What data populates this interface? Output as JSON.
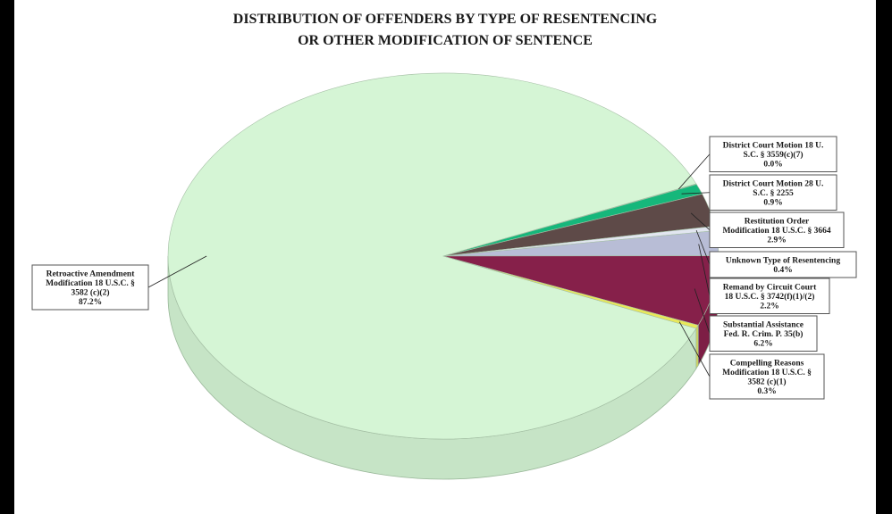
{
  "chart_data": {
    "type": "pie",
    "title": "DISTRIBUTION OF OFFENDERS BY TYPE OF RESENTENCING OR OTHER MODIFICATION OF SENTENCE",
    "title_lines": [
      "DISTRIBUTION OF OFFENDERS BY TYPE OF RESENTENCING",
      "OR OTHER MODIFICATION OF SENTENCE"
    ],
    "style": "3d",
    "slices": [
      {
        "label": "Retroactive Amendment Modification 18 U.S.C. § 3582 (c)(2)",
        "value_text": "87.2%",
        "value": 87.2,
        "color": "#d5f5d5",
        "label_lines": [
          "Retroactive Amendment",
          "Modification 18 U.S.C. §",
          "3582 (c)(2)",
          "87.2%"
        ]
      },
      {
        "label": "District Court Motion 18 U.S.C. § 3559(c)(7)",
        "value_text": "0.0%",
        "value": 0.05,
        "color": "#1f8a4c",
        "label_lines": [
          "District Court Motion 18 U.",
          "S.C. § 3559(c)(7)",
          "0.0%"
        ]
      },
      {
        "label": "District Court Motion 28 U.S.C. § 2255",
        "value_text": "0.9%",
        "value": 0.9,
        "color": "#16b77b",
        "label_lines": [
          "District Court Motion 28 U.",
          "S.C. § 2255",
          "0.9%"
        ]
      },
      {
        "label": "Restitution Order Modification 18 U.S.C. § 3664",
        "value_text": "2.9%",
        "value": 2.9,
        "color": "#5e4a48",
        "label_lines": [
          "Restitution Order",
          "Modification 18 U.S.C. § 3664",
          "2.9%"
        ]
      },
      {
        "label": "Unknown Type of Resentencing",
        "value_text": "0.4%",
        "value": 0.4,
        "color": "#e2e6f0",
        "label_lines": [
          "Unknown Type of Resentencing",
          "0.4%"
        ]
      },
      {
        "label": "Remand by Circuit Court 18 U.S.C. § 3742(f)(1)/(2)",
        "value_text": "2.2%",
        "value": 2.2,
        "color": "#b8bdd6",
        "label_lines": [
          "Remand by Circuit Court",
          "18 U.S.C. § 3742(f)(1)/(2)",
          "2.2%"
        ]
      },
      {
        "label": "Substantial Assistance Fed. R. Crim. P. 35(b)",
        "value_text": "6.2%",
        "value": 6.2,
        "color": "#86204a",
        "label_lines": [
          "Substantial Assistance",
          "Fed. R. Crim. P. 35(b)",
          "6.2%"
        ]
      },
      {
        "label": "Compelling Reasons Modification 18 U.S.C. § 3582 (c)(1)",
        "value_text": "0.3%",
        "value": 0.3,
        "color": "#e8e85a",
        "label_lines": [
          "Compelling Reasons",
          "Modification 18 U.S.C. §",
          "3582 (c)(1)",
          "0.3%"
        ]
      }
    ]
  }
}
